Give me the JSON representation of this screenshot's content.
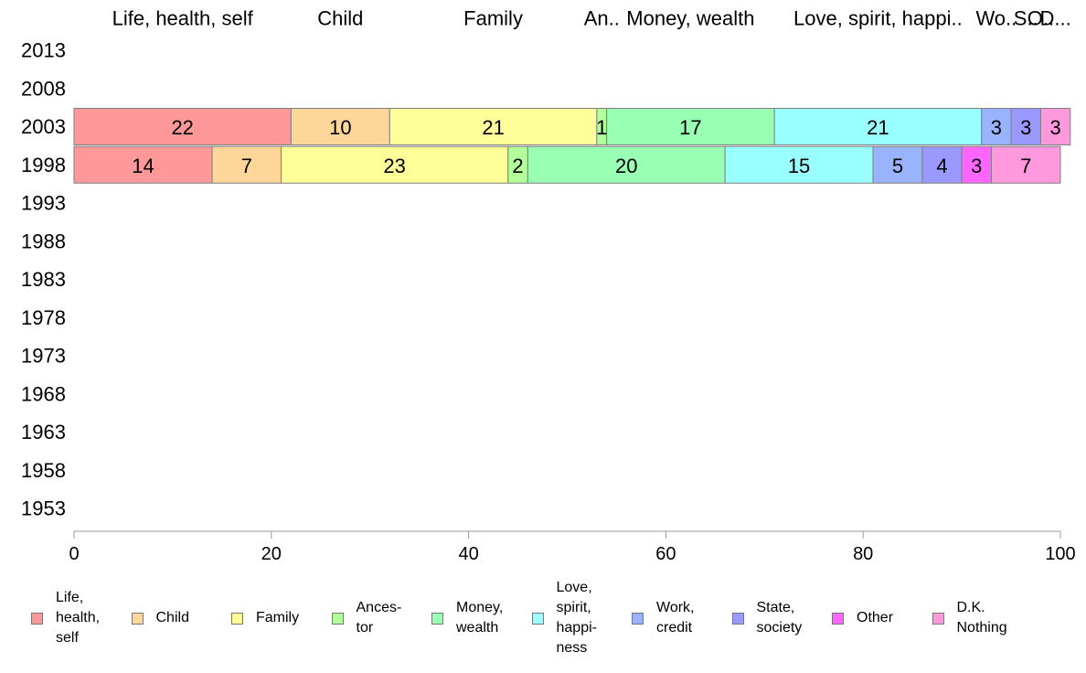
{
  "chart_data": {
    "type": "bar",
    "orientation": "horizontal",
    "stacked": true,
    "title": "",
    "xlabel": "",
    "ylabel": "",
    "xlim": [
      0,
      100
    ],
    "x_ticks": [
      0,
      20,
      40,
      60,
      80,
      100
    ],
    "categories": [
      "2013",
      "2008",
      "2003",
      "1998",
      "1993",
      "1988",
      "1983",
      "1978",
      "1973",
      "1968",
      "1963",
      "1958",
      "1953"
    ],
    "column_headers": [
      {
        "label": "Life, health, self",
        "series": 0
      },
      {
        "label": "Child",
        "series": 1
      },
      {
        "label": "Family",
        "series": 2
      },
      {
        "label": "An..",
        "series": 3
      },
      {
        "label": "Money, wealth",
        "series": 4
      },
      {
        "label": "Love, spirit, happi..",
        "series": 5
      },
      {
        "label": "Wo..",
        "series": 6
      },
      {
        "label": "S..",
        "series": 7
      },
      {
        "label": "O..",
        "series": 8
      },
      {
        "label": "D...",
        "series": 9
      }
    ],
    "series": [
      {
        "name": "Life,\nhealth,\nself",
        "color": "#ff9999",
        "values": [
          null,
          null,
          22,
          14,
          null,
          null,
          null,
          null,
          null,
          null,
          null,
          null,
          null
        ]
      },
      {
        "name": "Child",
        "color": "#ffd699",
        "values": [
          null,
          null,
          10,
          7,
          null,
          null,
          null,
          null,
          null,
          null,
          null,
          null,
          null
        ]
      },
      {
        "name": "Family",
        "color": "#ffff99",
        "values": [
          null,
          null,
          21,
          23,
          null,
          null,
          null,
          null,
          null,
          null,
          null,
          null,
          null
        ]
      },
      {
        "name": "Ances-\ntor",
        "color": "#b3ff99",
        "values": [
          null,
          null,
          1,
          2,
          null,
          null,
          null,
          null,
          null,
          null,
          null,
          null,
          null
        ]
      },
      {
        "name": "Money,\nwealth",
        "color": "#99ffb3",
        "values": [
          null,
          null,
          17,
          20,
          null,
          null,
          null,
          null,
          null,
          null,
          null,
          null,
          null
        ]
      },
      {
        "name": "Love,\nspirit,\nhappi-\nness",
        "color": "#99ffff",
        "values": [
          null,
          null,
          21,
          15,
          null,
          null,
          null,
          null,
          null,
          null,
          null,
          null,
          null
        ]
      },
      {
        "name": "Work,\ncredit",
        "color": "#99b3ff",
        "values": [
          null,
          null,
          3,
          5,
          null,
          null,
          null,
          null,
          null,
          null,
          null,
          null,
          null
        ]
      },
      {
        "name": "State,\nsociety",
        "color": "#9999ff",
        "values": [
          null,
          null,
          3,
          4,
          null,
          null,
          null,
          null,
          null,
          null,
          null,
          null,
          null
        ]
      },
      {
        "name": "Other",
        "color": "#ff66ff",
        "values": [
          null,
          null,
          0,
          3,
          null,
          null,
          null,
          null,
          null,
          null,
          null,
          null,
          null
        ]
      },
      {
        "name": "D.K.\nNothing",
        "color": "#ff99dd",
        "values": [
          null,
          null,
          3,
          7,
          null,
          null,
          null,
          null,
          null,
          null,
          null,
          null,
          null
        ]
      }
    ],
    "grid": false,
    "legend": "bottom"
  }
}
